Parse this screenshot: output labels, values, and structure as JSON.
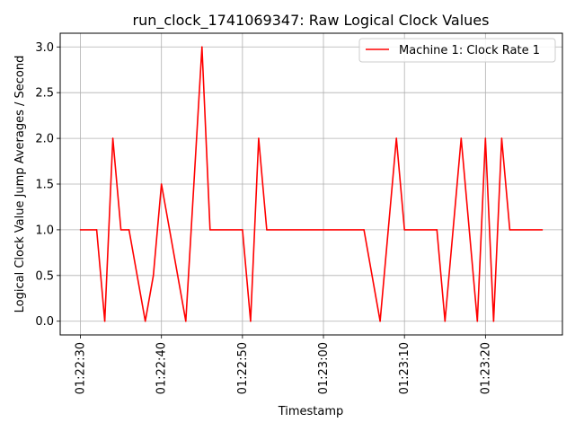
{
  "chart_data": {
    "type": "line",
    "title": "run_clock_1741069347: Raw Logical Clock Values",
    "xlabel": "Timestamp",
    "ylabel": "Logical Clock Value Jump Averages / Second",
    "xlim": [
      "01:22:27.5",
      "01:23:29.5"
    ],
    "ylim": [
      -0.15,
      3.15
    ],
    "x_ticks": [
      "01:22:30",
      "01:22:40",
      "01:22:50",
      "01:23:00",
      "01:23:10",
      "01:23:20"
    ],
    "y_ticks": [
      "0.0",
      "0.5",
      "1.0",
      "1.5",
      "2.0",
      "2.5",
      "3.0"
    ],
    "grid": true,
    "legend_position": "top-right",
    "series": [
      {
        "name": "Machine 1: Clock Rate 1",
        "color": "#ff0000",
        "points": [
          {
            "x": "01:22:30",
            "y": 1.0
          },
          {
            "x": "01:22:32",
            "y": 1.0
          },
          {
            "x": "01:22:33",
            "y": 0.0
          },
          {
            "x": "01:22:34",
            "y": 2.0
          },
          {
            "x": "01:22:35",
            "y": 1.0
          },
          {
            "x": "01:22:36",
            "y": 1.0
          },
          {
            "x": "01:22:38",
            "y": 0.0
          },
          {
            "x": "01:22:39",
            "y": 0.5
          },
          {
            "x": "01:22:40",
            "y": 1.5
          },
          {
            "x": "01:22:43",
            "y": 0.0
          },
          {
            "x": "01:22:45",
            "y": 3.0
          },
          {
            "x": "01:22:46",
            "y": 1.0
          },
          {
            "x": "01:22:50",
            "y": 1.0
          },
          {
            "x": "01:22:51",
            "y": 0.0
          },
          {
            "x": "01:22:52",
            "y": 2.0
          },
          {
            "x": "01:22:53",
            "y": 1.0
          },
          {
            "x": "01:23:05",
            "y": 1.0
          },
          {
            "x": "01:23:07",
            "y": 0.0
          },
          {
            "x": "01:23:09",
            "y": 2.0
          },
          {
            "x": "01:23:10",
            "y": 1.0
          },
          {
            "x": "01:23:14",
            "y": 1.0
          },
          {
            "x": "01:23:15",
            "y": 0.0
          },
          {
            "x": "01:23:17",
            "y": 2.0
          },
          {
            "x": "01:23:19",
            "y": 0.0
          },
          {
            "x": "01:23:20",
            "y": 2.0
          },
          {
            "x": "01:23:21",
            "y": 0.0
          },
          {
            "x": "01:23:22",
            "y": 2.0
          },
          {
            "x": "01:23:23",
            "y": 1.0
          },
          {
            "x": "01:23:27",
            "y": 1.0
          }
        ]
      }
    ]
  }
}
